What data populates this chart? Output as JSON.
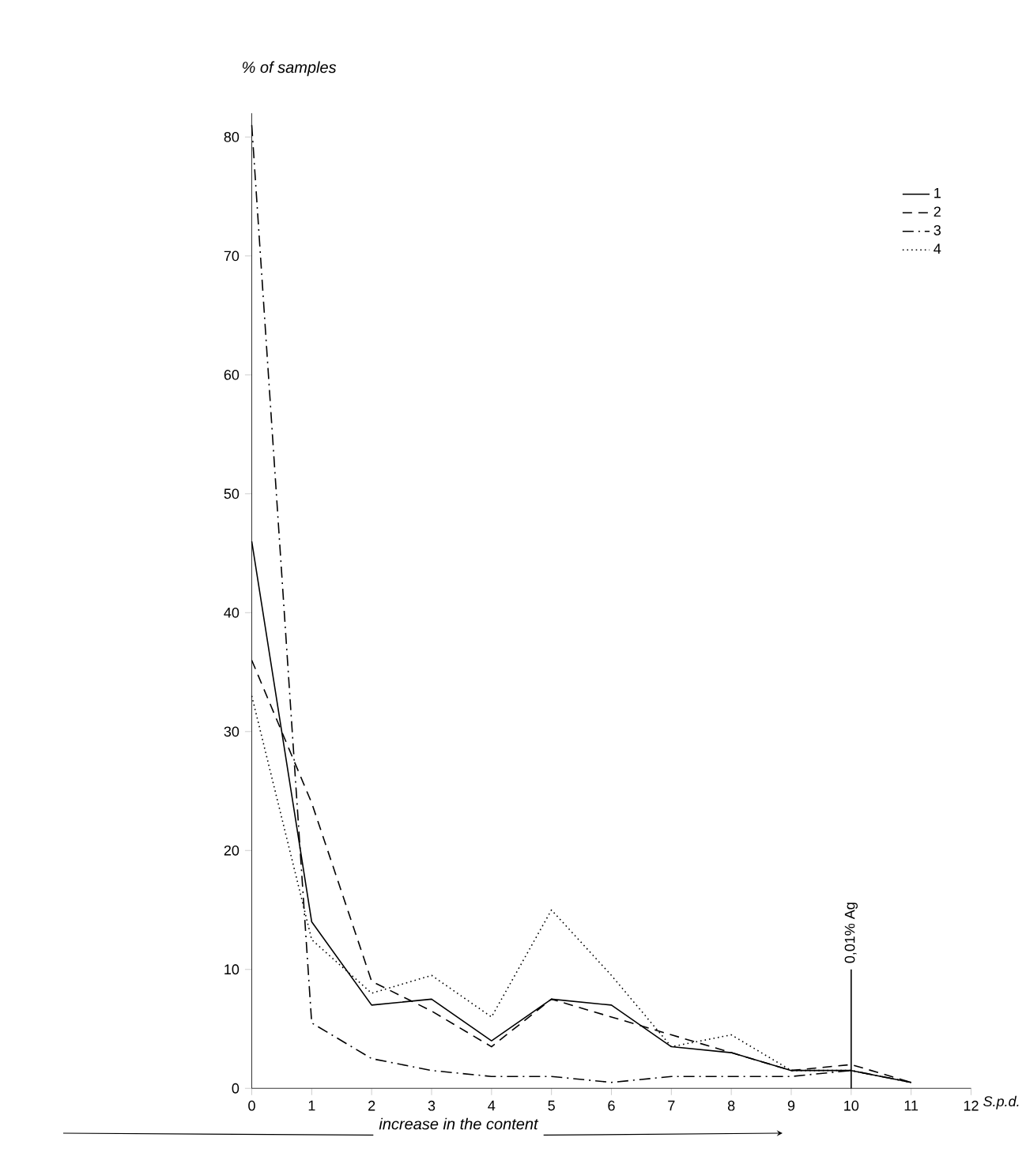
{
  "chart_data": {
    "type": "line",
    "ylabel": "% of samples",
    "xlabel": "S.p.d.",
    "x": [
      0,
      1,
      2,
      3,
      4,
      5,
      6,
      7,
      8,
      9,
      10,
      11
    ],
    "series": [
      {
        "name": "1",
        "color": "#000000",
        "line_style": "solid",
        "values": [
          46,
          14,
          7,
          7.5,
          4,
          7.5,
          7,
          3.5,
          3,
          1.5,
          1.5,
          0.5
        ]
      },
      {
        "name": "2",
        "color": "#000000",
        "line_style": "dashed",
        "values": [
          36,
          24,
          9,
          6.5,
          3.5,
          7.5,
          6,
          4.5,
          3,
          1.5,
          2,
          0.5
        ]
      },
      {
        "name": "3",
        "color": "#000000",
        "line_style": "dashdot",
        "values": [
          81,
          5.5,
          2.5,
          1.5,
          1,
          1,
          0.5,
          1,
          1,
          1,
          1.5,
          0.5
        ]
      },
      {
        "name": "4",
        "color": "#000000",
        "line_style": "dotted",
        "values": [
          33,
          12.5,
          8,
          9.5,
          6,
          15,
          9.5,
          3.5,
          4.5,
          1.5,
          1.5,
          0.5
        ]
      }
    ],
    "xlim": [
      0,
      12
    ],
    "ylim": [
      0,
      82
    ],
    "xticks": [
      0,
      1,
      2,
      3,
      4,
      5,
      6,
      7,
      8,
      9,
      10,
      11,
      12
    ],
    "yticks": [
      0,
      10,
      20,
      30,
      40,
      50,
      60,
      70,
      80
    ],
    "ref_lines": [
      {
        "axis": "x",
        "value": 10,
        "label": "0,01% Ag"
      }
    ],
    "annotations": [
      "increase in the content"
    ],
    "legend": "top right",
    "grid": false,
    "marker": "none"
  }
}
